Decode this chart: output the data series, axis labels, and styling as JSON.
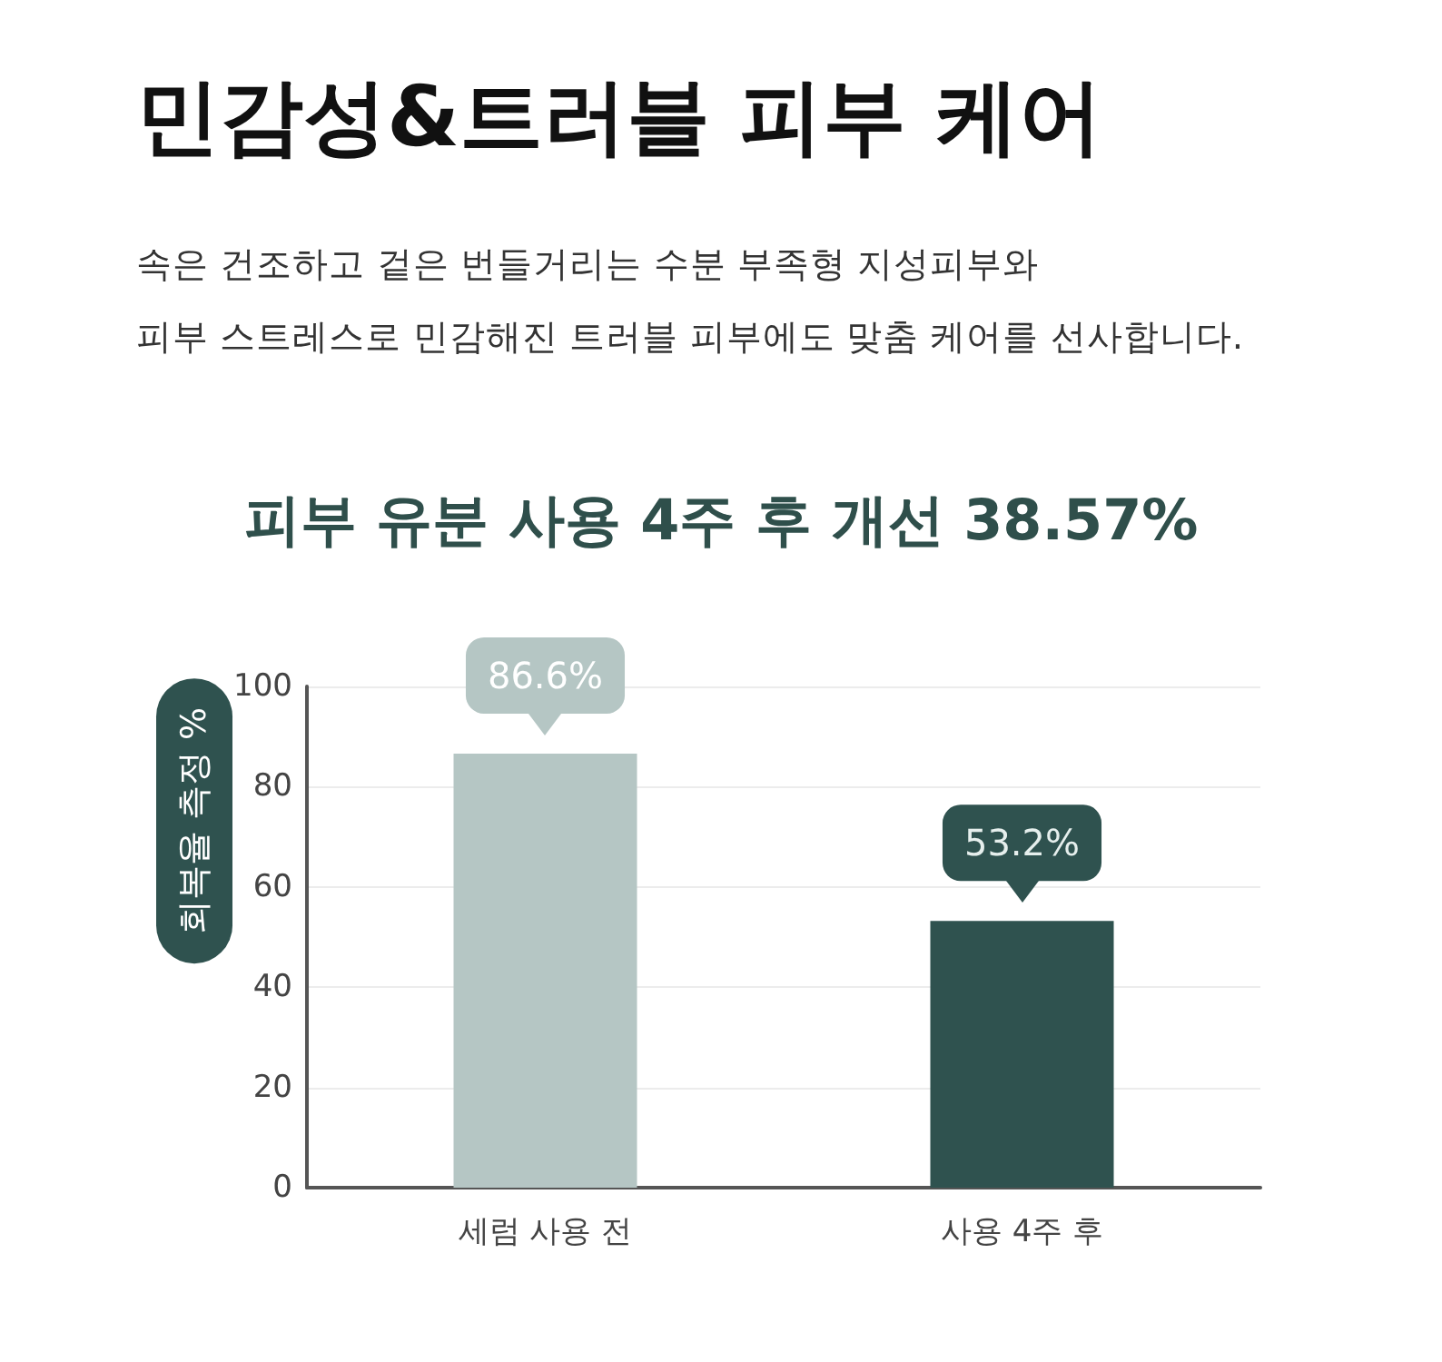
{
  "chart_data": {
    "type": "bar",
    "title": "민감성&트러블 피부 케어",
    "subtitle": "속은 건조하고 겉은 번들거리는 수분 부족형 지성피부와\n피부 스트레스로 민감해진 트러블 피부에도 맞춤 케어를 선사합니다.",
    "annotations": [
      "피부 유분 사용 4주 후 개선 38.57%"
    ],
    "ylabel": "회복율 측정 %",
    "categories": [
      "세럼 사용 전",
      "사용 4주 후"
    ],
    "values": [
      86.6,
      53.2
    ],
    "colors": [
      "#b5c6c4",
      "#2f524f"
    ],
    "value_labels": [
      "86.6%",
      "53.2%"
    ],
    "ylim": [
      0,
      100
    ],
    "yticks": [
      0,
      20,
      40,
      60,
      80,
      100
    ],
    "grid": "y"
  }
}
